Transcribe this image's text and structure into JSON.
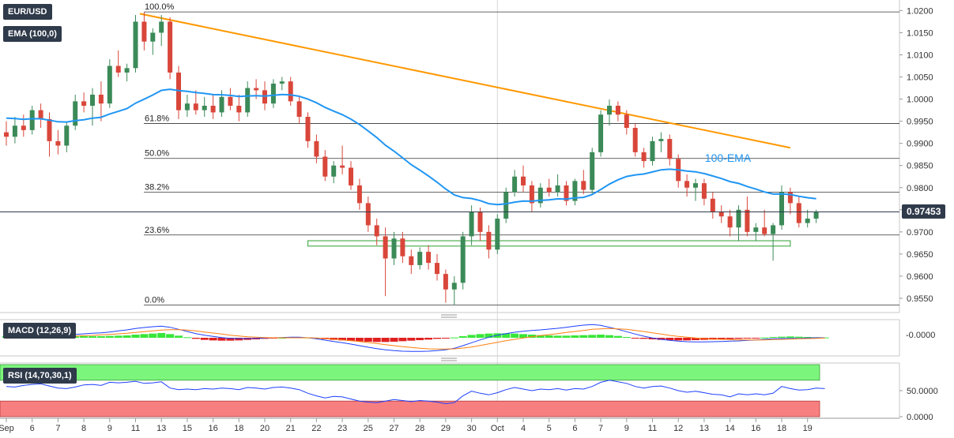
{
  "chart_data": {
    "type": "candlestick",
    "symbol": "EUR/USD",
    "indicator_label": "EMA (100,0)",
    "current_price": "0.97453",
    "price_axis": {
      "ylim": [
        0.9525,
        1.0215
      ],
      "ticks": [
        "1.0200",
        "1.0150",
        "1.0100",
        "1.0050",
        "1.0000",
        "0.9950",
        "0.9900",
        "0.9850",
        "0.9800",
        "0.9750",
        "0.9700",
        "0.9650",
        "0.9600",
        "0.9550"
      ]
    },
    "x_axis": {
      "ticks": [
        {
          "i": 0,
          "label": "Sep"
        },
        {
          "i": 3,
          "label": "6"
        },
        {
          "i": 6,
          "label": "7"
        },
        {
          "i": 9,
          "label": "8"
        },
        {
          "i": 12,
          "label": "9"
        },
        {
          "i": 15,
          "label": "11"
        },
        {
          "i": 18,
          "label": "13"
        },
        {
          "i": 21,
          "label": "15"
        },
        {
          "i": 24,
          "label": "16"
        },
        {
          "i": 27,
          "label": "18"
        },
        {
          "i": 30,
          "label": "20"
        },
        {
          "i": 33,
          "label": "21"
        },
        {
          "i": 36,
          "label": "22"
        },
        {
          "i": 39,
          "label": "23"
        },
        {
          "i": 42,
          "label": "25"
        },
        {
          "i": 45,
          "label": "27"
        },
        {
          "i": 48,
          "label": "28"
        },
        {
          "i": 51,
          "label": "29"
        },
        {
          "i": 54,
          "label": "30"
        },
        {
          "i": 57,
          "label": "Oct"
        },
        {
          "i": 60,
          "label": "4"
        },
        {
          "i": 63,
          "label": "5"
        },
        {
          "i": 66,
          "label": "6"
        },
        {
          "i": 69,
          "label": "7"
        },
        {
          "i": 72,
          "label": "9"
        },
        {
          "i": 75,
          "label": "11"
        },
        {
          "i": 78,
          "label": "12"
        },
        {
          "i": 81,
          "label": "13"
        },
        {
          "i": 84,
          "label": "14"
        },
        {
          "i": 87,
          "label": "16"
        },
        {
          "i": 90,
          "label": "18"
        },
        {
          "i": 93,
          "label": "19"
        }
      ]
    },
    "fibonacci_levels": [
      {
        "label": "100.0%",
        "value": 1.0197
      },
      {
        "label": "61.8%",
        "value": 0.9945
      },
      {
        "label": "50.0%",
        "value": 0.9866
      },
      {
        "label": "38.2%",
        "value": 0.979
      },
      {
        "label": "23.6%",
        "value": 0.9693
      },
      {
        "label": "0.0%",
        "value": 0.9535
      }
    ],
    "support_zone": {
      "start_i": 35,
      "end_i": 91,
      "low": 0.9668,
      "high": 0.968
    },
    "trendline": {
      "start_i": 15.5,
      "start_value": 1.0193,
      "end_i": 91,
      "end_value": 0.989
    },
    "ema_label": "100-EMA",
    "candles": [
      {
        "o": 0.9925,
        "h": 0.995,
        "l": 0.9895,
        "c": 0.9915
      },
      {
        "o": 0.9915,
        "h": 0.996,
        "l": 0.99,
        "c": 0.994
      },
      {
        "o": 0.994,
        "h": 0.9965,
        "l": 0.9915,
        "c": 0.993
      },
      {
        "o": 0.993,
        "h": 0.9985,
        "l": 0.992,
        "c": 0.9975
      },
      {
        "o": 0.9975,
        "h": 0.999,
        "l": 0.9935,
        "c": 0.9955
      },
      {
        "o": 0.9955,
        "h": 0.997,
        "l": 0.987,
        "c": 0.9905
      },
      {
        "o": 0.9905,
        "h": 0.993,
        "l": 0.9875,
        "c": 0.9895
      },
      {
        "o": 0.9895,
        "h": 0.995,
        "l": 0.988,
        "c": 0.994
      },
      {
        "o": 0.994,
        "h": 1.001,
        "l": 0.993,
        "c": 0.9995
      },
      {
        "o": 0.9995,
        "h": 1.0015,
        "l": 0.997,
        "c": 0.9985
      },
      {
        "o": 0.9985,
        "h": 1.0025,
        "l": 0.994,
        "c": 1.001
      },
      {
        "o": 1.001,
        "h": 1.004,
        "l": 0.995,
        "c": 0.999
      },
      {
        "o": 0.999,
        "h": 1.009,
        "l": 0.998,
        "c": 1.0075
      },
      {
        "o": 1.0075,
        "h": 1.011,
        "l": 1.005,
        "c": 1.006
      },
      {
        "o": 1.006,
        "h": 1.008,
        "l": 1.004,
        "c": 1.007
      },
      {
        "o": 1.007,
        "h": 1.019,
        "l": 1.006,
        "c": 1.0175
      },
      {
        "o": 1.0175,
        "h": 1.0197,
        "l": 1.011,
        "c": 1.013
      },
      {
        "o": 1.013,
        "h": 1.016,
        "l": 1.01,
        "c": 1.015
      },
      {
        "o": 1.015,
        "h": 1.019,
        "l": 1.012,
        "c": 1.0175
      },
      {
        "o": 1.0175,
        "h": 1.0185,
        "l": 1.0045,
        "c": 1.006
      },
      {
        "o": 1.006,
        "h": 1.0075,
        "l": 0.9955,
        "c": 0.9975
      },
      {
        "o": 0.9975,
        "h": 1.001,
        "l": 0.996,
        "c": 0.999
      },
      {
        "o": 0.999,
        "h": 1.002,
        "l": 0.9965,
        "c": 0.9975
      },
      {
        "o": 0.9975,
        "h": 1.0005,
        "l": 0.996,
        "c": 0.9985
      },
      {
        "o": 0.9985,
        "h": 1.001,
        "l": 0.9955,
        "c": 0.997
      },
      {
        "o": 0.997,
        "h": 1.002,
        "l": 0.996,
        "c": 1.0005
      },
      {
        "o": 1.0005,
        "h": 1.0025,
        "l": 0.9975,
        "c": 0.9985
      },
      {
        "o": 0.9985,
        "h": 1.001,
        "l": 0.995,
        "c": 0.997
      },
      {
        "o": 0.997,
        "h": 1.004,
        "l": 0.996,
        "c": 1.0025
      },
      {
        "o": 1.0025,
        "h": 1.0045,
        "l": 1.0,
        "c": 1.002
      },
      {
        "o": 1.002,
        "h": 1.004,
        "l": 0.9975,
        "c": 0.999
      },
      {
        "o": 0.999,
        "h": 1.0045,
        "l": 0.998,
        "c": 1.0035
      },
      {
        "o": 1.0035,
        "h": 1.005,
        "l": 1.002,
        "c": 1.004
      },
      {
        "o": 1.004,
        "h": 1.005,
        "l": 0.9985,
        "c": 0.9995
      },
      {
        "o": 0.9995,
        "h": 1.0005,
        "l": 0.9945,
        "c": 0.996
      },
      {
        "o": 0.996,
        "h": 0.997,
        "l": 0.989,
        "c": 0.9905
      },
      {
        "o": 0.9905,
        "h": 0.992,
        "l": 0.9855,
        "c": 0.987
      },
      {
        "o": 0.987,
        "h": 0.9885,
        "l": 0.9815,
        "c": 0.9825
      },
      {
        "o": 0.9825,
        "h": 0.986,
        "l": 0.981,
        "c": 0.985
      },
      {
        "o": 0.985,
        "h": 0.9895,
        "l": 0.983,
        "c": 0.9845
      },
      {
        "o": 0.9845,
        "h": 0.986,
        "l": 0.9795,
        "c": 0.9805
      },
      {
        "o": 0.9805,
        "h": 0.982,
        "l": 0.975,
        "c": 0.9765
      },
      {
        "o": 0.9765,
        "h": 0.978,
        "l": 0.97,
        "c": 0.9715
      },
      {
        "o": 0.9715,
        "h": 0.973,
        "l": 0.967,
        "c": 0.969
      },
      {
        "o": 0.969,
        "h": 0.971,
        "l": 0.9555,
        "c": 0.964
      },
      {
        "o": 0.964,
        "h": 0.97,
        "l": 0.9625,
        "c": 0.9685
      },
      {
        "o": 0.9685,
        "h": 0.97,
        "l": 0.963,
        "c": 0.9645
      },
      {
        "o": 0.9645,
        "h": 0.966,
        "l": 0.9605,
        "c": 0.9625
      },
      {
        "o": 0.9625,
        "h": 0.9665,
        "l": 0.9615,
        "c": 0.9655
      },
      {
        "o": 0.9655,
        "h": 0.967,
        "l": 0.9615,
        "c": 0.963
      },
      {
        "o": 0.963,
        "h": 0.965,
        "l": 0.959,
        "c": 0.9605
      },
      {
        "o": 0.9605,
        "h": 0.9615,
        "l": 0.954,
        "c": 0.957
      },
      {
        "o": 0.957,
        "h": 0.96,
        "l": 0.9535,
        "c": 0.9585
      },
      {
        "o": 0.9585,
        "h": 0.97,
        "l": 0.957,
        "c": 0.969
      },
      {
        "o": 0.969,
        "h": 0.976,
        "l": 0.967,
        "c": 0.9745
      },
      {
        "o": 0.9745,
        "h": 0.9755,
        "l": 0.968,
        "c": 0.97
      },
      {
        "o": 0.97,
        "h": 0.9715,
        "l": 0.964,
        "c": 0.966
      },
      {
        "o": 0.966,
        "h": 0.974,
        "l": 0.965,
        "c": 0.973
      },
      {
        "o": 0.973,
        "h": 0.98,
        "l": 0.972,
        "c": 0.979
      },
      {
        "o": 0.979,
        "h": 0.984,
        "l": 0.978,
        "c": 0.9825
      },
      {
        "o": 0.9825,
        "h": 0.985,
        "l": 0.979,
        "c": 0.9805
      },
      {
        "o": 0.9805,
        "h": 0.9815,
        "l": 0.9745,
        "c": 0.9765
      },
      {
        "o": 0.9765,
        "h": 0.981,
        "l": 0.9755,
        "c": 0.98
      },
      {
        "o": 0.98,
        "h": 0.982,
        "l": 0.978,
        "c": 0.979
      },
      {
        "o": 0.979,
        "h": 0.983,
        "l": 0.978,
        "c": 0.9805
      },
      {
        "o": 0.9805,
        "h": 0.9815,
        "l": 0.976,
        "c": 0.977
      },
      {
        "o": 0.977,
        "h": 0.982,
        "l": 0.976,
        "c": 0.9815
      },
      {
        "o": 0.9815,
        "h": 0.984,
        "l": 0.9785,
        "c": 0.9795
      },
      {
        "o": 0.9795,
        "h": 0.989,
        "l": 0.9785,
        "c": 0.988
      },
      {
        "o": 0.988,
        "h": 0.9975,
        "l": 0.987,
        "c": 0.9965
      },
      {
        "o": 0.9965,
        "h": 0.9999,
        "l": 0.994,
        "c": 0.9985
      },
      {
        "o": 0.9985,
        "h": 0.9995,
        "l": 0.995,
        "c": 0.9965
      },
      {
        "o": 0.9965,
        "h": 0.9975,
        "l": 0.992,
        "c": 0.9935
      },
      {
        "o": 0.9935,
        "h": 0.9945,
        "l": 0.987,
        "c": 0.988
      },
      {
        "o": 0.988,
        "h": 0.989,
        "l": 0.9845,
        "c": 0.986
      },
      {
        "o": 0.986,
        "h": 0.9915,
        "l": 0.985,
        "c": 0.9905
      },
      {
        "o": 0.9905,
        "h": 0.9925,
        "l": 0.988,
        "c": 0.991
      },
      {
        "o": 0.991,
        "h": 0.992,
        "l": 0.985,
        "c": 0.9865
      },
      {
        "o": 0.9865,
        "h": 0.9875,
        "l": 0.98,
        "c": 0.9815
      },
      {
        "o": 0.9815,
        "h": 0.983,
        "l": 0.978,
        "c": 0.98
      },
      {
        "o": 0.98,
        "h": 0.982,
        "l": 0.977,
        "c": 0.981
      },
      {
        "o": 0.981,
        "h": 0.982,
        "l": 0.976,
        "c": 0.9775
      },
      {
        "o": 0.9775,
        "h": 0.979,
        "l": 0.973,
        "c": 0.9745
      },
      {
        "o": 0.9745,
        "h": 0.976,
        "l": 0.972,
        "c": 0.9735
      },
      {
        "o": 0.9735,
        "h": 0.975,
        "l": 0.969,
        "c": 0.971
      },
      {
        "o": 0.971,
        "h": 0.976,
        "l": 0.968,
        "c": 0.975
      },
      {
        "o": 0.975,
        "h": 0.978,
        "l": 0.969,
        "c": 0.97
      },
      {
        "o": 0.97,
        "h": 0.972,
        "l": 0.968,
        "c": 0.971
      },
      {
        "o": 0.971,
        "h": 0.975,
        "l": 0.969,
        "c": 0.9695
      },
      {
        "o": 0.9695,
        "h": 0.972,
        "l": 0.9635,
        "c": 0.9715
      },
      {
        "o": 0.9715,
        "h": 0.9805,
        "l": 0.9705,
        "c": 0.979
      },
      {
        "o": 0.979,
        "h": 0.98,
        "l": 0.974,
        "c": 0.9765
      },
      {
        "o": 0.9765,
        "h": 0.978,
        "l": 0.971,
        "c": 0.972
      },
      {
        "o": 0.972,
        "h": 0.975,
        "l": 0.971,
        "c": 0.973
      },
      {
        "o": 0.973,
        "h": 0.975,
        "l": 0.972,
        "c": 0.9745
      }
    ],
    "macd": {
      "label": "MACD (12,26,9)",
      "tick": "-0.0000",
      "histogram": [
        0.0006,
        0.0007,
        0.0008,
        0.0008,
        0.0009,
        0.0008,
        0.0006,
        0.0005,
        0.0005,
        0.0006,
        0.0006,
        0.0006,
        0.0007,
        0.0008,
        0.0009,
        0.0012,
        0.0014,
        0.0016,
        0.0018,
        0.0014,
        0.0008,
        0.0002,
        -0.0004,
        -0.0008,
        -0.001,
        -0.0011,
        -0.0011,
        -0.001,
        -0.0008,
        -0.0006,
        -0.0004,
        -0.0002,
        0.0,
        0.0002,
        0.0002,
        0.0001,
        -0.0002,
        -0.0005,
        -0.0008,
        -0.001,
        -0.0012,
        -0.0014,
        -0.0015,
        -0.0016,
        -0.0016,
        -0.0015,
        -0.0013,
        -0.0011,
        -0.0009,
        -0.0007,
        -0.0004,
        -0.0002,
        0.0001,
        0.0006,
        0.0011,
        0.0014,
        0.0016,
        0.0017,
        0.0017,
        0.0016,
        0.0014,
        0.0012,
        0.001,
        0.0009,
        0.0008,
        0.0008,
        0.0009,
        0.001,
        0.0011,
        0.0012,
        0.001,
        0.0007,
        0.0003,
        -0.0001,
        -0.0004,
        -0.0006,
        -0.0008,
        -0.0009,
        -0.001,
        -0.001,
        -0.0009,
        -0.0008,
        -0.0007,
        -0.0006,
        -0.0005,
        -0.0004,
        -0.0003,
        -0.0001,
        0.0001,
        0.0003,
        0.0004,
        0.0005,
        0.0004,
        0.0003,
        0.0002,
        0.0001
      ],
      "macd_line": [
        0.0002,
        0.0004,
        0.0006,
        0.0008,
        0.001,
        0.0011,
        0.0011,
        0.0012,
        0.0013,
        0.0015,
        0.0017,
        0.0019,
        0.0022,
        0.0026,
        0.003,
        0.0035,
        0.0039,
        0.0042,
        0.0044,
        0.004,
        0.0032,
        0.0024,
        0.0016,
        0.001,
        0.0005,
        0.0001,
        -0.0002,
        -0.0003,
        -0.0003,
        -0.0002,
        -0.0001,
        0.0,
        0.0001,
        0.0002,
        0.0002,
        0.0,
        -0.0004,
        -0.0009,
        -0.0014,
        -0.0019,
        -0.0024,
        -0.003,
        -0.0036,
        -0.0041,
        -0.0046,
        -0.0049,
        -0.0051,
        -0.0052,
        -0.0052,
        -0.0051,
        -0.0049,
        -0.0046,
        -0.004,
        -0.003,
        -0.0019,
        -0.0008,
        0.0002,
        0.001,
        0.0016,
        0.0021,
        0.0025,
        0.0028,
        0.003,
        0.0033,
        0.0036,
        0.004,
        0.0044,
        0.0048,
        0.005,
        0.0047,
        0.004,
        0.0032,
        0.0023,
        0.0014,
        0.0006,
        -0.0001,
        -0.0006,
        -0.001,
        -0.0013,
        -0.0015,
        -0.0016,
        -0.0016,
        -0.0015,
        -0.0014,
        -0.0013,
        -0.0012,
        -0.001,
        -0.0008,
        -0.0006,
        -0.0004,
        -0.0003,
        -0.0002,
        -0.0002,
        -0.0001,
        0.0,
        0.0
      ],
      "signal_line": [
        -0.0002,
        -0.0001,
        0.0,
        0.0001,
        0.0002,
        0.0003,
        0.0004,
        0.0005,
        0.0006,
        0.0008,
        0.0009,
        0.0011,
        0.0013,
        0.0015,
        0.0017,
        0.002,
        0.0023,
        0.0026,
        0.0029,
        0.0031,
        0.0031,
        0.0029,
        0.0026,
        0.0022,
        0.0018,
        0.0014,
        0.001,
        0.0007,
        0.0004,
        0.0002,
        0.0001,
        0.0,
        0.0,
        0.0,
        0.0,
        0.0,
        -0.0001,
        -0.0003,
        -0.0005,
        -0.0008,
        -0.0011,
        -0.0014,
        -0.0018,
        -0.0022,
        -0.0026,
        -0.003,
        -0.0034,
        -0.0037,
        -0.004,
        -0.0042,
        -0.0043,
        -0.0043,
        -0.0042,
        -0.0039,
        -0.0035,
        -0.0029,
        -0.0023,
        -0.0017,
        -0.0011,
        -0.0006,
        -0.0001,
        0.0004,
        0.0008,
        0.0012,
        0.0016,
        0.002,
        0.0024,
        0.0028,
        0.0032,
        0.0034,
        0.0035,
        0.0034,
        0.0032,
        0.0028,
        0.0024,
        0.0019,
        0.0014,
        0.0009,
        0.0005,
        0.0002,
        -0.0001,
        -0.0003,
        -0.0005,
        -0.0006,
        -0.0007,
        -0.0008,
        -0.0008,
        -0.0008,
        -0.0008,
        -0.0007,
        -0.0006,
        -0.0005,
        -0.0004,
        -0.0003,
        -0.0002,
        -0.0001
      ],
      "ylim": [
        -0.006,
        0.006
      ]
    },
    "rsi": {
      "label": "RSI (14,70,30,1)",
      "ticks": [
        {
          "v": 50,
          "label": "50.0000"
        },
        {
          "v": 0,
          "label": "0.0000"
        }
      ],
      "overbought": 70,
      "oversold": 30,
      "ylim": [
        0,
        100
      ],
      "values": [
        58,
        57,
        60,
        62,
        63,
        59,
        55,
        54,
        57,
        61,
        62,
        60,
        66,
        65,
        66,
        68,
        64,
        65,
        67,
        55,
        52,
        53,
        52,
        54,
        53,
        55,
        54,
        52,
        56,
        55,
        53,
        56,
        57,
        55,
        52,
        45,
        40,
        36,
        39,
        38,
        34,
        30,
        28,
        27,
        30,
        33,
        31,
        29,
        31,
        30,
        28,
        25,
        27,
        40,
        49,
        45,
        42,
        46,
        52,
        56,
        53,
        50,
        53,
        52,
        54,
        51,
        54,
        53,
        58,
        66,
        70,
        67,
        64,
        58,
        55,
        58,
        59,
        55,
        50,
        47,
        49,
        46,
        43,
        42,
        38,
        44,
        42,
        44,
        42,
        45,
        58,
        54,
        51,
        52,
        55,
        54
      ]
    }
  }
}
